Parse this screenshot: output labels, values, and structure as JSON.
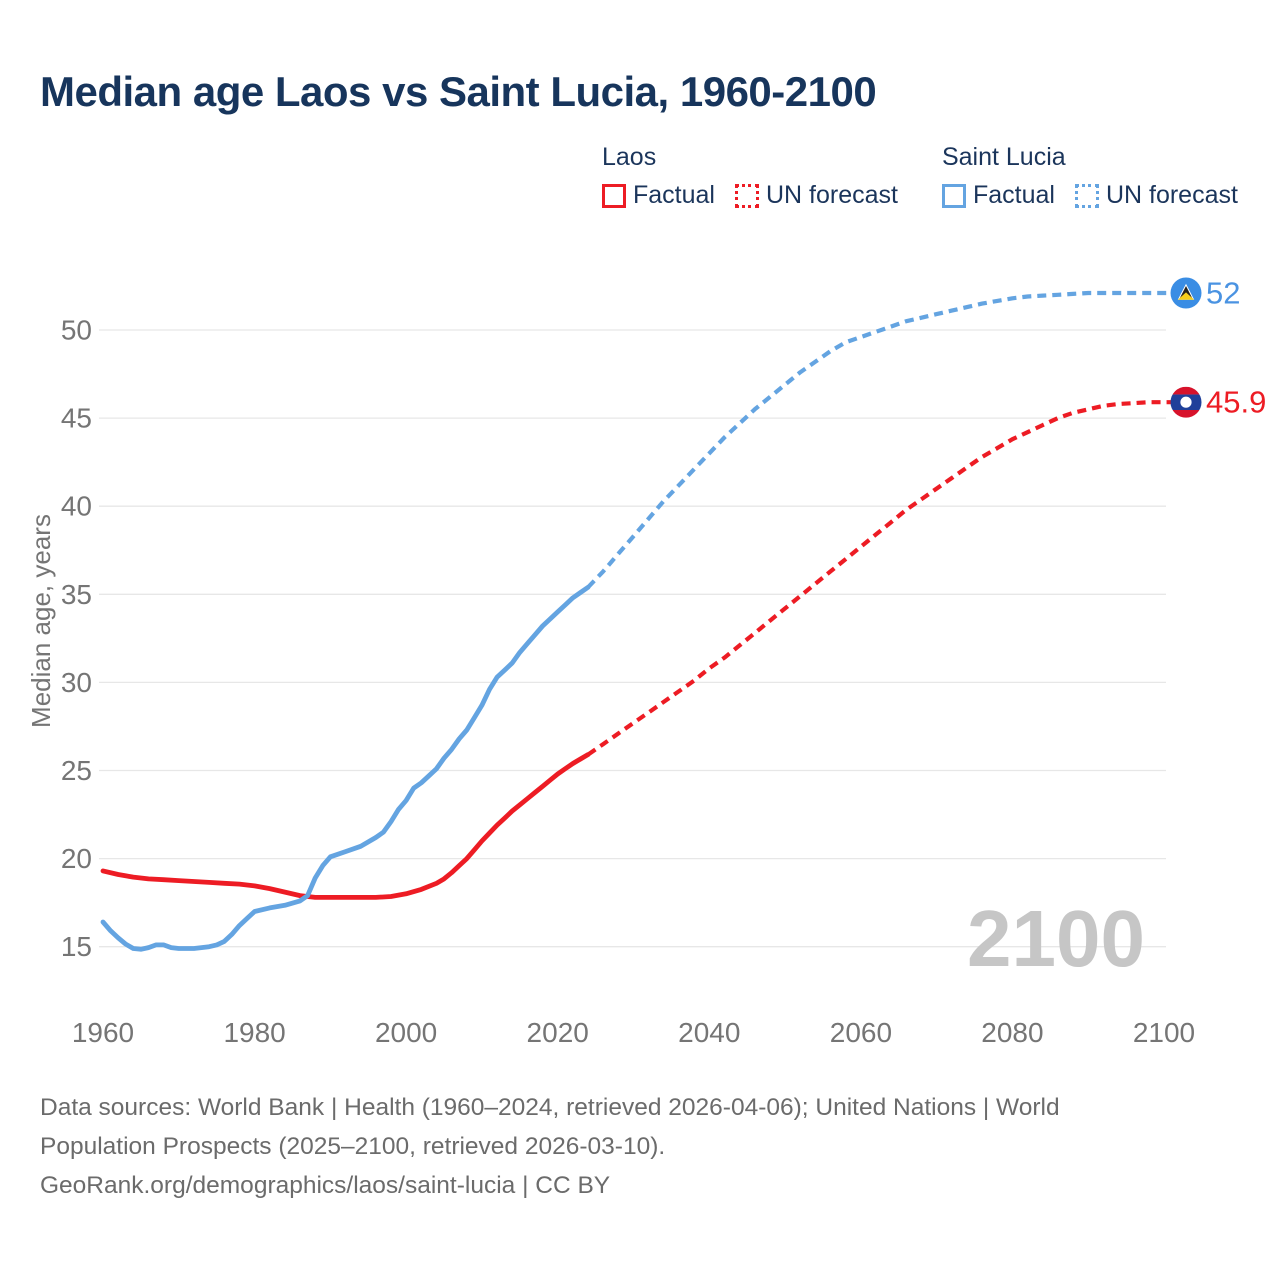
{
  "title": "Median age Laos vs Saint Lucia, 1960-2100",
  "legend": {
    "groups": [
      {
        "name": "Laos",
        "items": [
          {
            "label": "Factual",
            "style": "solid",
            "color": "#ed1c24"
          },
          {
            "label": "UN forecast",
            "style": "dotted",
            "color": "#ed1c24"
          }
        ]
      },
      {
        "name": "Saint Lucia",
        "items": [
          {
            "label": "Factual",
            "style": "solid",
            "color": "#64a4e1"
          },
          {
            "label": "UN forecast",
            "style": "dotted",
            "color": "#64a4e1"
          }
        ]
      }
    ]
  },
  "chart_data": {
    "type": "line",
    "title": "Median age Laos vs Saint Lucia, 1960-2100",
    "xlabel": "",
    "ylabel": "Median age, years",
    "x_ticks": [
      1960,
      1980,
      2000,
      2020,
      2040,
      2060,
      2080,
      2100
    ],
    "y_ticks": [
      15,
      20,
      25,
      30,
      35,
      40,
      45,
      50
    ],
    "xlim": [
      1960,
      2100
    ],
    "ylim": [
      13,
      53
    ],
    "grid": "horizontal",
    "legend_position": "top",
    "watermark": "2100",
    "colors": {
      "laos": "#ed1c24",
      "laos_label": "#ed1c24",
      "saint_lucia": "#64a4e1",
      "saint_lucia_label": "#4a93e2",
      "grid": "#e7e7e7",
      "tick": "#757575",
      "watermark": "#c6c6c6",
      "laos_flag_red": "#d7122b",
      "laos_flag_blue": "#20409a",
      "slu_flag_blue": "#3a8de4",
      "slu_flag_gold": "#f7ce1b",
      "slu_flag_black": "#26231d",
      "white": "#ffffff"
    },
    "series": [
      {
        "id": "laos-factual",
        "name": "Laos — Factual",
        "style": "solid",
        "color": "#ed1c24",
        "points": [
          [
            1960,
            19.3
          ],
          [
            1962,
            19.1
          ],
          [
            1964,
            18.95
          ],
          [
            1966,
            18.85
          ],
          [
            1968,
            18.8
          ],
          [
            1970,
            18.75
          ],
          [
            1972,
            18.7
          ],
          [
            1974,
            18.65
          ],
          [
            1976,
            18.6
          ],
          [
            1978,
            18.55
          ],
          [
            1980,
            18.45
          ],
          [
            1982,
            18.3
          ],
          [
            1984,
            18.1
          ],
          [
            1986,
            17.9
          ],
          [
            1988,
            17.8
          ],
          [
            1990,
            17.8
          ],
          [
            1992,
            17.8
          ],
          [
            1994,
            17.8
          ],
          [
            1996,
            17.8
          ],
          [
            1998,
            17.85
          ],
          [
            2000,
            18.0
          ],
          [
            2002,
            18.25
          ],
          [
            2004,
            18.6
          ],
          [
            2005,
            18.85
          ],
          [
            2006,
            19.2
          ],
          [
            2007,
            19.6
          ],
          [
            2008,
            20.0
          ],
          [
            2009,
            20.5
          ],
          [
            2010,
            21.0
          ],
          [
            2011,
            21.45
          ],
          [
            2012,
            21.9
          ],
          [
            2013,
            22.3
          ],
          [
            2014,
            22.7
          ],
          [
            2015,
            23.05
          ],
          [
            2016,
            23.4
          ],
          [
            2017,
            23.75
          ],
          [
            2018,
            24.1
          ],
          [
            2019,
            24.45
          ],
          [
            2020,
            24.8
          ],
          [
            2021,
            25.1
          ],
          [
            2022,
            25.4
          ],
          [
            2023,
            25.65
          ],
          [
            2024,
            25.9
          ]
        ]
      },
      {
        "id": "laos-forecast",
        "name": "Laos — UN forecast",
        "style": "dashed",
        "color": "#ed1c24",
        "end_label": "45.9",
        "label_color": "#ed1c24",
        "flag": "laos",
        "points": [
          [
            2024,
            25.9
          ],
          [
            2026,
            26.5
          ],
          [
            2028,
            27.1
          ],
          [
            2030,
            27.7
          ],
          [
            2032,
            28.3
          ],
          [
            2034,
            28.9
          ],
          [
            2036,
            29.5
          ],
          [
            2038,
            30.1
          ],
          [
            2040,
            30.8
          ],
          [
            2042,
            31.4
          ],
          [
            2044,
            32.1
          ],
          [
            2046,
            32.8
          ],
          [
            2048,
            33.5
          ],
          [
            2050,
            34.2
          ],
          [
            2052,
            34.9
          ],
          [
            2054,
            35.6
          ],
          [
            2056,
            36.3
          ],
          [
            2058,
            37.0
          ],
          [
            2060,
            37.7
          ],
          [
            2062,
            38.4
          ],
          [
            2064,
            39.1
          ],
          [
            2066,
            39.8
          ],
          [
            2068,
            40.4
          ],
          [
            2070,
            41.0
          ],
          [
            2072,
            41.6
          ],
          [
            2074,
            42.2
          ],
          [
            2076,
            42.8
          ],
          [
            2078,
            43.3
          ],
          [
            2080,
            43.8
          ],
          [
            2082,
            44.2
          ],
          [
            2084,
            44.6
          ],
          [
            2086,
            45.0
          ],
          [
            2088,
            45.3
          ],
          [
            2090,
            45.5
          ],
          [
            2092,
            45.7
          ],
          [
            2094,
            45.8
          ],
          [
            2096,
            45.85
          ],
          [
            2098,
            45.9
          ],
          [
            2100,
            45.9
          ]
        ]
      },
      {
        "id": "saint-lucia-factual",
        "name": "Saint Lucia — Factual",
        "style": "solid",
        "color": "#64a4e1",
        "points": [
          [
            1960,
            16.4
          ],
          [
            1961,
            15.9
          ],
          [
            1962,
            15.5
          ],
          [
            1963,
            15.15
          ],
          [
            1964,
            14.9
          ],
          [
            1965,
            14.85
          ],
          [
            1966,
            14.95
          ],
          [
            1967,
            15.1
          ],
          [
            1968,
            15.1
          ],
          [
            1969,
            14.95
          ],
          [
            1970,
            14.9
          ],
          [
            1971,
            14.9
          ],
          [
            1972,
            14.9
          ],
          [
            1973,
            14.95
          ],
          [
            1974,
            15.0
          ],
          [
            1975,
            15.1
          ],
          [
            1976,
            15.3
          ],
          [
            1977,
            15.7
          ],
          [
            1978,
            16.2
          ],
          [
            1979,
            16.6
          ],
          [
            1980,
            17.0
          ],
          [
            1982,
            17.2
          ],
          [
            1984,
            17.35
          ],
          [
            1986,
            17.6
          ],
          [
            1987,
            17.9
          ],
          [
            1988,
            18.9
          ],
          [
            1989,
            19.6
          ],
          [
            1990,
            20.1
          ],
          [
            1992,
            20.4
          ],
          [
            1994,
            20.7
          ],
          [
            1996,
            21.2
          ],
          [
            1997,
            21.5
          ],
          [
            1998,
            22.1
          ],
          [
            1999,
            22.8
          ],
          [
            2000,
            23.3
          ],
          [
            2001,
            24.0
          ],
          [
            2002,
            24.3
          ],
          [
            2003,
            24.7
          ],
          [
            2004,
            25.1
          ],
          [
            2005,
            25.7
          ],
          [
            2006,
            26.2
          ],
          [
            2007,
            26.8
          ],
          [
            2008,
            27.3
          ],
          [
            2009,
            28.0
          ],
          [
            2010,
            28.7
          ],
          [
            2011,
            29.6
          ],
          [
            2012,
            30.3
          ],
          [
            2013,
            30.7
          ],
          [
            2014,
            31.1
          ],
          [
            2015,
            31.7
          ],
          [
            2016,
            32.2
          ],
          [
            2017,
            32.7
          ],
          [
            2018,
            33.2
          ],
          [
            2019,
            33.6
          ],
          [
            2020,
            34.0
          ],
          [
            2021,
            34.4
          ],
          [
            2022,
            34.8
          ],
          [
            2023,
            35.1
          ],
          [
            2024,
            35.4
          ]
        ]
      },
      {
        "id": "saint-lucia-forecast",
        "name": "Saint Lucia — UN forecast",
        "style": "dashed",
        "color": "#64a4e1",
        "end_label": "52",
        "label_color": "#4a93e2",
        "flag": "saint-lucia",
        "points": [
          [
            2024,
            35.4
          ],
          [
            2026,
            36.3
          ],
          [
            2028,
            37.3
          ],
          [
            2030,
            38.3
          ],
          [
            2032,
            39.3
          ],
          [
            2034,
            40.3
          ],
          [
            2036,
            41.2
          ],
          [
            2038,
            42.1
          ],
          [
            2040,
            43.0
          ],
          [
            2042,
            43.9
          ],
          [
            2044,
            44.7
          ],
          [
            2046,
            45.5
          ],
          [
            2048,
            46.2
          ],
          [
            2050,
            46.9
          ],
          [
            2052,
            47.6
          ],
          [
            2054,
            48.2
          ],
          [
            2056,
            48.8
          ],
          [
            2058,
            49.3
          ],
          [
            2060,
            49.6
          ],
          [
            2062,
            49.9
          ],
          [
            2064,
            50.2
          ],
          [
            2066,
            50.5
          ],
          [
            2068,
            50.7
          ],
          [
            2070,
            50.9
          ],
          [
            2072,
            51.1
          ],
          [
            2074,
            51.3
          ],
          [
            2076,
            51.5
          ],
          [
            2078,
            51.65
          ],
          [
            2080,
            51.8
          ],
          [
            2082,
            51.9
          ],
          [
            2084,
            51.95
          ],
          [
            2086,
            52.0
          ],
          [
            2088,
            52.05
          ],
          [
            2090,
            52.1
          ],
          [
            2092,
            52.1
          ],
          [
            2094,
            52.1
          ],
          [
            2096,
            52.1
          ],
          [
            2098,
            52.1
          ],
          [
            2100,
            52.1
          ]
        ]
      }
    ]
  },
  "footer": {
    "line1": "Data sources: World Bank | Health (1960–2024, retrieved 2026-04-06); United Nations | World",
    "line2": "Population Prospects (2025–2100, retrieved 2026-03-10).",
    "line3": "GeoRank.org/demographics/laos/saint-lucia | CC BY"
  }
}
